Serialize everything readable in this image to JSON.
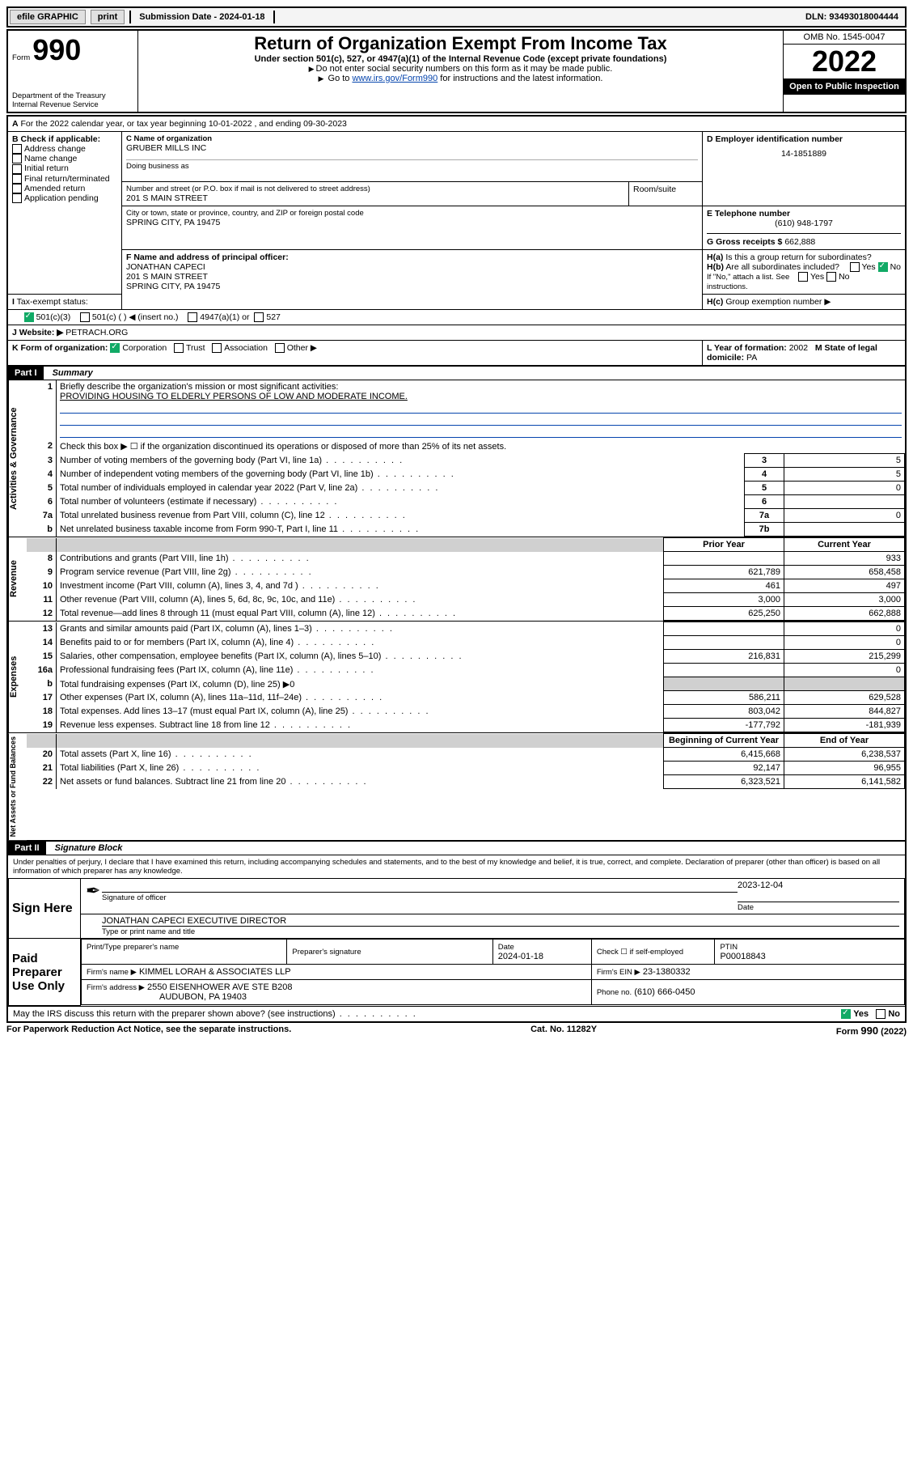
{
  "topbar": {
    "efile": "efile GRAPHIC",
    "print": "print",
    "submission_label": "Submission Date -",
    "submission_date": "2024-01-18",
    "dln_label": "DLN:",
    "dln": "93493018004444"
  },
  "header": {
    "form_prefix": "Form",
    "form_num": "990",
    "title": "Return of Organization Exempt From Income Tax",
    "subtitle": "Under section 501(c), 527, or 4947(a)(1) of the Internal Revenue Code (except private foundations)",
    "note1": "Do not enter social security numbers on this form as it may be made public.",
    "note2_pre": "Go to ",
    "note2_link": "www.irs.gov/Form990",
    "note2_post": " for instructions and the latest information.",
    "dept": "Department of the Treasury",
    "irs": "Internal Revenue Service",
    "omb": "OMB No. 1545-0047",
    "year": "2022",
    "open": "Open to Public Inspection"
  },
  "secA": {
    "a_line": "For the 2022 calendar year, or tax year beginning 10-01-2022   , and ending 09-30-2023",
    "b_label": "B Check if applicable:",
    "b_opts": [
      "Address change",
      "Name change",
      "Initial return",
      "Final return/terminated",
      "Amended return",
      "Application pending"
    ],
    "c_label": "C Name of organization",
    "c_name": "GRUBER MILLS INC",
    "dba_label": "Doing business as",
    "addr_label": "Number and street (or P.O. box if mail is not delivered to street address)",
    "room_label": "Room/suite",
    "addr": "201 S MAIN STREET",
    "city_label": "City or town, state or province, country, and ZIP or foreign postal code",
    "city": "SPRING CITY, PA  19475",
    "d_label": "D Employer identification number",
    "ein": "14-1851889",
    "e_label": "E Telephone number",
    "phone": "(610) 948-1797",
    "g_label": "G Gross receipts $",
    "gross": "662,888",
    "f_label": "F Name and address of principal officer:",
    "f_name": "JONATHAN CAPECI",
    "f_addr1": "201 S MAIN STREET",
    "f_addr2": "SPRING CITY, PA  19475",
    "ha": "Is this a group return for subordinates?",
    "hb": "Are all subordinates included?",
    "h_note": "If \"No,\" attach a list. See instructions.",
    "hc": "Group exemption number ▶",
    "i_label": "Tax-exempt status:",
    "i_501c3": "501(c)(3)",
    "i_501c": "501(c) (   ) ◀ (insert no.)",
    "i_4947": "4947(a)(1) or",
    "i_527": "527",
    "j_label": "Website: ▶",
    "website": "PETRACH.ORG",
    "k_label": "K Form of organization:",
    "k_opts": [
      "Corporation",
      "Trust",
      "Association",
      "Other ▶"
    ],
    "l_label": "L Year of formation:",
    "l_val": "2002",
    "m_label": "M State of legal domicile:",
    "m_val": "PA",
    "yes": "Yes",
    "no": "No",
    "ha_lbl": "H(a)",
    "hb_lbl": "H(b)",
    "hc_lbl": "H(c)"
  },
  "part1": {
    "hdr": "Part I",
    "title": "Summary",
    "l1": "Briefly describe the organization's mission or most significant activities:",
    "mission": "PROVIDING HOUSING TO ELDERLY PERSONS OF LOW AND MODERATE INCOME.",
    "l2": "Check this box ▶ ☐  if the organization discontinued its operations or disposed of more than 25% of its net assets.",
    "l3": "Number of voting members of the governing body (Part VI, line 1a)",
    "l4": "Number of independent voting members of the governing body (Part VI, line 1b)",
    "l5": "Total number of individuals employed in calendar year 2022 (Part V, line 2a)",
    "l6": "Total number of volunteers (estimate if necessary)",
    "l7a": "Total unrelated business revenue from Part VIII, column (C), line 12",
    "l7b": "Net unrelated business taxable income from Form 990-T, Part I, line 11",
    "v3": "5",
    "v4": "5",
    "v5": "0",
    "v6": "",
    "v7a": "0",
    "v7b": "",
    "prior": "Prior Year",
    "current": "Current Year",
    "rows": [
      {
        "n": "8",
        "d": "Contributions and grants (Part VIII, line 1h)",
        "p": "",
        "c": "933"
      },
      {
        "n": "9",
        "d": "Program service revenue (Part VIII, line 2g)",
        "p": "621,789",
        "c": "658,458"
      },
      {
        "n": "10",
        "d": "Investment income (Part VIII, column (A), lines 3, 4, and 7d )",
        "p": "461",
        "c": "497"
      },
      {
        "n": "11",
        "d": "Other revenue (Part VIII, column (A), lines 5, 6d, 8c, 9c, 10c, and 11e)",
        "p": "3,000",
        "c": "3,000"
      },
      {
        "n": "12",
        "d": "Total revenue—add lines 8 through 11 (must equal Part VIII, column (A), line 12)",
        "p": "625,250",
        "c": "662,888"
      },
      {
        "n": "13",
        "d": "Grants and similar amounts paid (Part IX, column (A), lines 1–3)",
        "p": "",
        "c": "0"
      },
      {
        "n": "14",
        "d": "Benefits paid to or for members (Part IX, column (A), line 4)",
        "p": "",
        "c": "0"
      },
      {
        "n": "15",
        "d": "Salaries, other compensation, employee benefits (Part IX, column (A), lines 5–10)",
        "p": "216,831",
        "c": "215,299"
      },
      {
        "n": "16a",
        "d": "Professional fundraising fees (Part IX, column (A), line 11e)",
        "p": "",
        "c": "0"
      },
      {
        "n": "b",
        "d": "Total fundraising expenses (Part IX, column (D), line 25) ▶0",
        "p": "SHADE",
        "c": "SHADE"
      },
      {
        "n": "17",
        "d": "Other expenses (Part IX, column (A), lines 11a–11d, 11f–24e)",
        "p": "586,211",
        "c": "629,528"
      },
      {
        "n": "18",
        "d": "Total expenses. Add lines 13–17 (must equal Part IX, column (A), line 25)",
        "p": "803,042",
        "c": "844,827"
      },
      {
        "n": "19",
        "d": "Revenue less expenses. Subtract line 18 from line 12",
        "p": "-177,792",
        "c": "-181,939"
      }
    ],
    "beg": "Beginning of Current Year",
    "end": "End of Year",
    "rows2": [
      {
        "n": "20",
        "d": "Total assets (Part X, line 16)",
        "p": "6,415,668",
        "c": "6,238,537"
      },
      {
        "n": "21",
        "d": "Total liabilities (Part X, line 26)",
        "p": "92,147",
        "c": "96,955"
      },
      {
        "n": "22",
        "d": "Net assets or fund balances. Subtract line 21 from line 20",
        "p": "6,323,521",
        "c": "6,141,582"
      }
    ],
    "vlabels": {
      "gov": "Activities & Governance",
      "rev": "Revenue",
      "exp": "Expenses",
      "net": "Net Assets or Fund Balances"
    }
  },
  "part2": {
    "hdr": "Part II",
    "title": "Signature Block",
    "decl": "Under penalties of perjury, I declare that I have examined this return, including accompanying schedules and statements, and to the best of my knowledge and belief, it is true, correct, and complete. Declaration of preparer (other than officer) is based on all information of which preparer has any knowledge.",
    "sign_here": "Sign Here",
    "sig_officer": "Signature of officer",
    "date_lbl": "Date",
    "sig_date": "2023-12-04",
    "officer_name": "JONATHAN CAPECI  EXECUTIVE DIRECTOR",
    "type_name": "Type or print name and title",
    "paid": "Paid Preparer Use Only",
    "pt_name_lbl": "Print/Type preparer's name",
    "prep_sig_lbl": "Preparer's signature",
    "prep_date": "2024-01-18",
    "check_self": "Check ☐ if self-employed",
    "ptin_lbl": "PTIN",
    "ptin": "P00018843",
    "firm_name_lbl": "Firm's name   ▶",
    "firm_name": "KIMMEL LORAH & ASSOCIATES LLP",
    "firm_ein_lbl": "Firm's EIN ▶",
    "firm_ein": "23-1380332",
    "firm_addr_lbl": "Firm's address ▶",
    "firm_addr": "2550 EISENHOWER AVE STE B208",
    "firm_addr2": "AUDUBON, PA  19403",
    "phone_lbl": "Phone no.",
    "phone": "(610) 666-0450",
    "discuss": "May the IRS discuss this return with the preparer shown above? (see instructions)",
    "yes": "Yes",
    "no": "No"
  },
  "footer": {
    "pra": "For Paperwork Reduction Act Notice, see the separate instructions.",
    "cat": "Cat. No. 11282Y",
    "form": "Form 990 (2022)"
  }
}
